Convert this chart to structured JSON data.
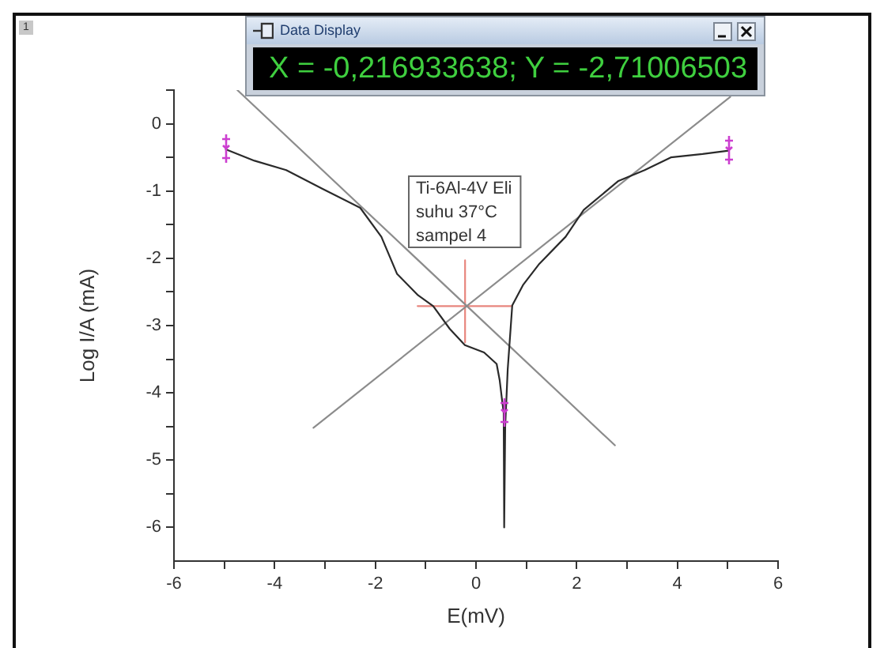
{
  "chart_data": {
    "type": "line",
    "xlabel": "E(mV)",
    "ylabel": "Log I/A (mA)",
    "annotations": [
      "Ti-6Al-4V Eli\nsuhu 37°C\nsampel 4",
      "X = -0,216933638; Y = -2,71006503",
      "Data Display",
      "1"
    ],
    "xlim": [
      -6,
      6
    ],
    "xticks": [
      -6,
      {
        "value": -5,
        "label": null
      },
      -4,
      {
        "value": -3,
        "label": null
      },
      -2,
      {
        "value": -1,
        "label": null
      },
      0,
      {
        "value": 1,
        "label": null
      },
      2,
      {
        "value": 3,
        "label": null
      },
      4,
      {
        "value": 5,
        "label": null
      },
      6
    ],
    "ylim": [
      -6.5,
      0.5
    ],
    "yticks": [
      -6,
      {
        "value": -5.5,
        "label": null
      },
      -5,
      {
        "value": -4.5,
        "label": null
      },
      -4,
      {
        "value": -3.5,
        "label": null
      },
      -3,
      {
        "value": -2.5,
        "label": null
      },
      -2,
      {
        "value": -1.5,
        "label": null
      },
      -1,
      {
        "value": -0.5,
        "label": null
      },
      0,
      {
        "value": 0.5,
        "label": null
      }
    ],
    "marker": "none",
    "series": [
      {
        "color": "#2a2a2a",
        "x": [
          -4.97,
          -4.4,
          -3.77,
          -3.04,
          -2.3,
          -1.88,
          -1.57,
          -1.15,
          -0.85,
          -0.52,
          -0.22,
          0.16,
          0.41,
          0.47,
          0.52,
          0.55,
          0.56,
          0.58,
          0.63,
          0.72,
          0.94,
          1.26,
          1.78,
          2.14,
          2.83,
          3.35,
          3.87,
          4.5,
          5.02
        ],
        "values": [
          -0.38,
          -0.55,
          -0.69,
          -0.97,
          -1.25,
          -1.68,
          -2.23,
          -2.55,
          -2.71,
          -3.05,
          -3.29,
          -3.4,
          -3.57,
          -3.81,
          -4.12,
          -4.3,
          -6,
          -4.5,
          -3.65,
          -2.7,
          -2.39,
          -2.08,
          -1.68,
          -1.28,
          -0.85,
          -0.69,
          -0.5,
          -0.45,
          -0.4
        ]
      },
      {
        "color": "#8c8c8c",
        "x": [
          -4.74,
          2.76
        ],
        "values": [
          0.5,
          -4.78
        ]
      },
      {
        "color": "#8c8c8c",
        "x": [
          -3.23,
          5.05
        ],
        "values": [
          -4.52,
          0.4
        ]
      },
      {
        "color": "#e8867e",
        "x": [
          -1.16,
          0.72
        ],
        "values": [
          -2.71,
          -2.71
        ]
      },
      {
        "color": "#e8867e",
        "x": [
          -0.217,
          -0.217
        ],
        "values": [
          -2.03,
          -3.25
        ]
      }
    ]
  }
}
